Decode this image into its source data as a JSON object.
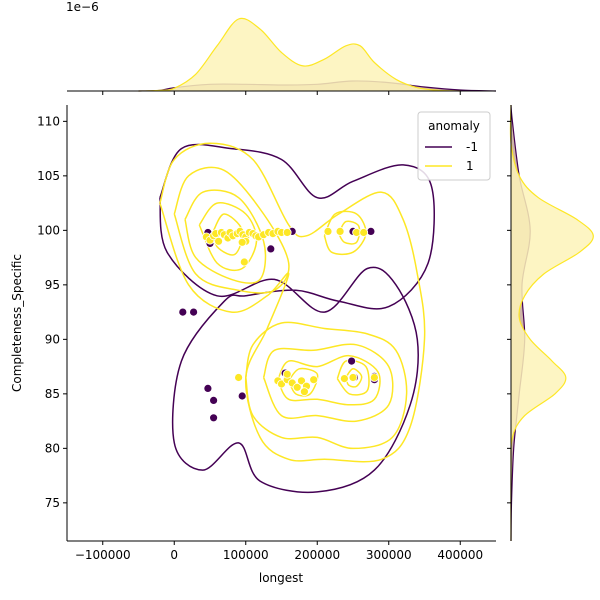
{
  "chart_data": {
    "type": "scatter",
    "title": "",
    "xlabel": "longest",
    "ylabel": "Completeness_Specific",
    "xlim": [
      -150000,
      450000
    ],
    "ylim": [
      71.5,
      111.5
    ],
    "x_ticks": [
      -100000,
      0,
      100000,
      200000,
      300000,
      400000
    ],
    "x_tick_labels": [
      "−100000",
      "0",
      "100000",
      "200000",
      "300000",
      "400000"
    ],
    "y_ticks": [
      75,
      80,
      85,
      90,
      95,
      100,
      105,
      110
    ],
    "y_tick_labels": [
      "75",
      "80",
      "85",
      "90",
      "95",
      "100",
      "105",
      "110"
    ],
    "top_marginal_offset_label": "1e−6",
    "legend": {
      "title": "anomaly",
      "location": "upper right",
      "entries": [
        {
          "label": "-1",
          "color": "#440154"
        },
        {
          "label": "1",
          "color": "#fde725"
        }
      ]
    },
    "series": [
      {
        "name": "-1",
        "color": "#440154",
        "points": [
          [
            12000,
            92.5
          ],
          [
            27000,
            92.5
          ],
          [
            47000,
            99.8
          ],
          [
            50000,
            98.8
          ],
          [
            47000,
            85.5
          ],
          [
            55000,
            84.4
          ],
          [
            55000,
            82.8
          ],
          [
            90000,
            86.5
          ],
          [
            95000,
            84.8
          ],
          [
            92000,
            99.8
          ],
          [
            135000,
            98.3
          ],
          [
            165000,
            99.9
          ],
          [
            155000,
            86.9
          ],
          [
            232000,
            99.9
          ],
          [
            250000,
            99.9
          ],
          [
            275000,
            99.9
          ],
          [
            248000,
            88.0
          ],
          [
            252000,
            86.5
          ],
          [
            280000,
            86.6
          ],
          [
            280000,
            86.3
          ],
          [
            58000,
            99.3
          ]
        ]
      },
      {
        "name": "1",
        "color": "#fde725",
        "points": [
          [
            45000,
            99.4
          ],
          [
            50000,
            99.1
          ],
          [
            55000,
            99.5
          ],
          [
            58000,
            99.7
          ],
          [
            62000,
            99.0
          ],
          [
            66000,
            99.8
          ],
          [
            70000,
            99.6
          ],
          [
            75000,
            99.3
          ],
          [
            78000,
            99.8
          ],
          [
            82000,
            99.5
          ],
          [
            88000,
            99.7
          ],
          [
            92000,
            99.9
          ],
          [
            96000,
            99.6
          ],
          [
            100000,
            99.4
          ],
          [
            100000,
            99.0
          ],
          [
            105000,
            99.8
          ],
          [
            110000,
            99.7
          ],
          [
            114000,
            99.5
          ],
          [
            118000,
            99.4
          ],
          [
            125000,
            99.6
          ],
          [
            132000,
            99.8
          ],
          [
            138000,
            99.7
          ],
          [
            145000,
            99.9
          ],
          [
            150000,
            99.8
          ],
          [
            158000,
            99.8
          ],
          [
            98000,
            97.1
          ],
          [
            95000,
            98.9
          ],
          [
            90000,
            86.5
          ],
          [
            145000,
            86.2
          ],
          [
            150000,
            85.9
          ],
          [
            158000,
            86.3
          ],
          [
            165000,
            86.0
          ],
          [
            172000,
            85.6
          ],
          [
            178000,
            86.2
          ],
          [
            185000,
            85.7
          ],
          [
            195000,
            86.3
          ],
          [
            215000,
            99.9
          ],
          [
            232000,
            99.9
          ],
          [
            238000,
            86.4
          ],
          [
            250000,
            86.5
          ],
          [
            255000,
            99.8
          ],
          [
            265000,
            99.8
          ],
          [
            280000,
            86.5
          ],
          [
            158000,
            86.8
          ],
          [
            182000,
            85.2
          ]
        ]
      }
    ],
    "joint_contours": [
      {
        "name": "-1",
        "color": "#440154",
        "levels": [
          [
            [
              -20000,
              103
            ],
            [
              10000,
              107.5
            ],
            [
              80000,
              107.5
            ],
            [
              150000,
              106.5
            ],
            [
              200000,
              103
            ],
            [
              250000,
              104.5
            ],
            [
              320000,
              106
            ],
            [
              360000,
              104
            ],
            [
              355000,
              97
            ],
            [
              300000,
              93
            ],
            [
              230000,
              93.5
            ],
            [
              170000,
              94.5
            ],
            [
              100000,
              94
            ],
            [
              70000,
              93.5
            ],
            [
              10000,
              88
            ],
            [
              0,
              80.5
            ],
            [
              40000,
              78
            ],
            [
              90000,
              80.5
            ],
            [
              120000,
              77
            ],
            [
              200000,
              76
            ],
            [
              280000,
              78
            ],
            [
              330000,
              84
            ],
            [
              340000,
              90
            ],
            [
              310000,
              95
            ],
            [
              270000,
              96.5
            ],
            [
              210000,
              92.5
            ],
            [
              140000,
              95.5
            ],
            [
              60000,
              94
            ],
            [
              -10000,
              98
            ],
            [
              -20000,
              103
            ]
          ]
        ]
      },
      {
        "name": "1",
        "color": "#fde725",
        "levels": [
          [
            [
              -20000,
              102.5
            ],
            [
              0,
              106.5
            ],
            [
              50000,
              108
            ],
            [
              110000,
              106.5
            ],
            [
              160000,
              100.5
            ],
            [
              185000,
              99.5
            ],
            [
              230000,
              101.5
            ],
            [
              290000,
              103.5
            ],
            [
              320000,
              101
            ],
            [
              340000,
              96
            ],
            [
              350000,
              90
            ],
            [
              330000,
              82
            ],
            [
              290000,
              79
            ],
            [
              210000,
              79
            ],
            [
              160000,
              79
            ],
            [
              120000,
              81
            ],
            [
              100000,
              86.5
            ],
            [
              130000,
              91
            ],
            [
              160000,
              96
            ],
            [
              130000,
              94
            ],
            [
              80000,
              92.5
            ],
            [
              20000,
              95
            ],
            [
              -20000,
              102.5
            ]
          ],
          [
            [
              0,
              101.5
            ],
            [
              20000,
              105
            ],
            [
              70000,
              105.5
            ],
            [
              125000,
              101.5
            ],
            [
              160000,
              97
            ],
            [
              140000,
              94.5
            ],
            [
              90000,
              94.5
            ],
            [
              30000,
              96
            ],
            [
              0,
              101.5
            ]
          ],
          [
            [
              15000,
              101
            ],
            [
              40000,
              103.5
            ],
            [
              90000,
              103
            ],
            [
              125000,
              99
            ],
            [
              120000,
              95.5
            ],
            [
              80000,
              95.5
            ],
            [
              30000,
              97.5
            ],
            [
              15000,
              101
            ]
          ],
          [
            [
              35000,
              100.5
            ],
            [
              60000,
              102.5
            ],
            [
              100000,
              101.5
            ],
            [
              115000,
              99
            ],
            [
              95000,
              96.5
            ],
            [
              60000,
              97
            ],
            [
              35000,
              100.5
            ]
          ],
          [
            [
              55000,
              100
            ],
            [
              70000,
              101.5
            ],
            [
              95000,
              100
            ],
            [
              85000,
              97.8
            ],
            [
              60000,
              98.5
            ],
            [
              55000,
              100
            ]
          ],
          [
            [
              210000,
              99.5
            ],
            [
              225000,
              101.5
            ],
            [
              255000,
              101.5
            ],
            [
              268000,
              99.7
            ],
            [
              250000,
              98
            ],
            [
              220000,
              98
            ],
            [
              210000,
              99.5
            ]
          ],
          [
            [
              230000,
              99.7
            ],
            [
              240000,
              100.8
            ],
            [
              258000,
              100.4
            ],
            [
              255000,
              98.9
            ],
            [
              238000,
              98.9
            ],
            [
              230000,
              99.7
            ]
          ],
          [
            [
              100000,
              86.5
            ],
            [
              110000,
              89.5
            ],
            [
              150000,
              91.5
            ],
            [
              210000,
              91
            ],
            [
              270000,
              90.5
            ],
            [
              310000,
              89
            ],
            [
              325000,
              85
            ],
            [
              305000,
              81
            ],
            [
              250000,
              80
            ],
            [
              200000,
              81
            ],
            [
              150000,
              81
            ],
            [
              110000,
              83
            ],
            [
              100000,
              86.5
            ]
          ],
          [
            [
              125000,
              86.5
            ],
            [
              140000,
              89
            ],
            [
              195000,
              89
            ],
            [
              255000,
              89.5
            ],
            [
              300000,
              87.5
            ],
            [
              300000,
              84
            ],
            [
              255000,
              82.5
            ],
            [
              200000,
              83
            ],
            [
              150000,
              83
            ],
            [
              125000,
              86.5
            ]
          ],
          [
            [
              145000,
              86.3
            ],
            [
              160000,
              88
            ],
            [
              200000,
              87.5
            ],
            [
              245000,
              88.5
            ],
            [
              285000,
              87
            ],
            [
              280000,
              84.5
            ],
            [
              245000,
              84
            ],
            [
              200000,
              84.5
            ],
            [
              160000,
              84.5
            ],
            [
              145000,
              86.3
            ]
          ],
          [
            [
              160000,
              86.2
            ],
            [
              175000,
              87.3
            ],
            [
              200000,
              86.8
            ],
            [
              190000,
              85
            ],
            [
              170000,
              85
            ],
            [
              160000,
              86.2
            ]
          ],
          [
            [
              228000,
              86.4
            ],
            [
              240000,
              88
            ],
            [
              268000,
              87.5
            ],
            [
              270000,
              85.3
            ],
            [
              245000,
              85
            ],
            [
              228000,
              86.4
            ]
          ],
          [
            [
              240000,
              86.5
            ],
            [
              250000,
              87.3
            ],
            [
              262000,
              86.6
            ],
            [
              255000,
              85.7
            ],
            [
              244000,
              85.8
            ],
            [
              240000,
              86.5
            ]
          ]
        ]
      }
    ],
    "marginal_x": {
      "density_unit": "1e-6",
      "series": [
        {
          "name": "-1",
          "color": "#440154",
          "fill": "#c8a998",
          "x": [
            -50000,
            -20000,
            0,
            50000,
            100000,
            150000,
            200000,
            250000,
            300000,
            350000,
            400000,
            450000
          ],
          "y": [
            0.0,
            0.02,
            0.1,
            0.2,
            0.2,
            0.18,
            0.2,
            0.3,
            0.25,
            0.12,
            0.03,
            0.0
          ]
        },
        {
          "name": "1",
          "color": "#fde725",
          "fill": "#fdf3b8",
          "x": [
            -50000,
            -20000,
            0,
            30000,
            60000,
            90000,
            120000,
            150000,
            180000,
            210000,
            240000,
            260000,
            280000,
            310000,
            340000,
            370000,
            400000
          ],
          "y": [
            0.0,
            0.02,
            0.08,
            0.5,
            1.35,
            2.15,
            1.85,
            1.15,
            0.75,
            0.95,
            1.35,
            1.35,
            0.85,
            0.35,
            0.1,
            0.02,
            0.0
          ]
        }
      ]
    },
    "marginal_y": {
      "series": [
        {
          "name": "-1",
          "color": "#440154",
          "fill": "#c8a998",
          "y": [
            71.5,
            75,
            80,
            85,
            90,
            95,
            100,
            105,
            110,
            111.5
          ],
          "d": [
            0.0,
            0.002,
            0.01,
            0.03,
            0.05,
            0.04,
            0.07,
            0.03,
            0.005,
            0.0
          ]
        },
        {
          "name": "1",
          "color": "#fde725",
          "fill": "#fdf3b8",
          "y": [
            71.5,
            78,
            81,
            83,
            85,
            86.5,
            88,
            90,
            92,
            94,
            96,
            98,
            99.5,
            101,
            103,
            105,
            108,
            111.5
          ],
          "d": [
            0.0,
            0.0,
            0.005,
            0.05,
            0.16,
            0.2,
            0.15,
            0.07,
            0.03,
            0.05,
            0.12,
            0.25,
            0.3,
            0.24,
            0.1,
            0.03,
            0.0,
            0.0
          ]
        }
      ]
    }
  }
}
